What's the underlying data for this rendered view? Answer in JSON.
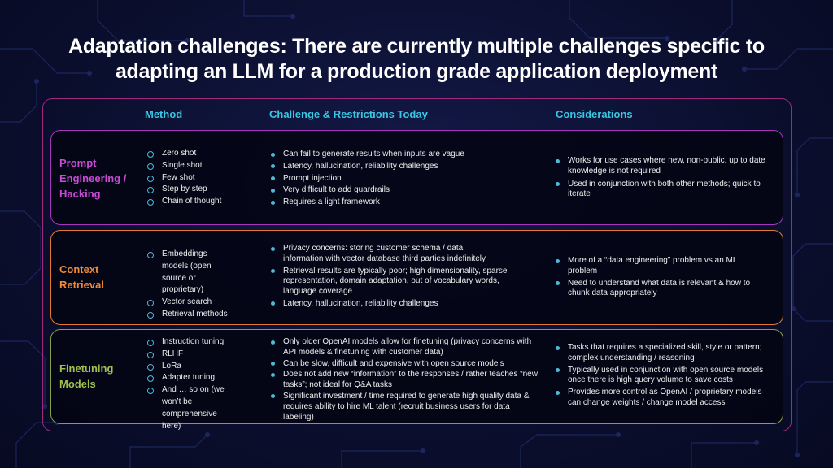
{
  "slide": {
    "title_line1": "Adaptation challenges: There are currently multiple challenges specific to",
    "title_line2": "adapting an LLM for a production grade application deployment"
  },
  "columns": {
    "method": "Method",
    "challenge": "Challenge & Restrictions Today",
    "considerations": "Considerations"
  },
  "rows": [
    {
      "name_lines": [
        "Prompt",
        "Engineering /",
        "Hacking"
      ],
      "methods": [
        "Zero shot",
        "Single shot",
        "Few shot",
        "Step by step",
        "Chain of thought"
      ],
      "challenges": [
        "Can fail to generate results when inputs are vague",
        "Latency, hallucination, reliability challenges",
        "Prompt injection",
        "Very difficult to add guardrails",
        "Requires a light framework"
      ],
      "considerations": [
        "Works for use cases where new, non-public, up to date knowledge is not required",
        "Used in conjunction with both other methods; quick to iterate"
      ]
    },
    {
      "name_lines": [
        "Context",
        "Retrieval"
      ],
      "methods": [
        "Embeddings models (open source or proprietary)",
        "Vector search",
        "Retrieval methods"
      ],
      "challenges": [
        "Privacy concerns: storing customer schema / data information with vector database third parties indefinitely",
        "Retrieval results are typically poor; high dimensionality, sparse representation, domain adaptation, out of vocabulary words, language coverage",
        "Latency, hallucination, reliability challenges"
      ],
      "considerations": [
        "More of a “data engineering” problem vs an ML problem",
        "Need to understand what data is relevant & how to chunk data appropriately"
      ]
    },
    {
      "name_lines": [
        "Finetuning",
        "Models"
      ],
      "methods": [
        "Instruction tuning",
        "RLHF",
        "LoRa",
        "Adapter tuning",
        "And … so on (we won’t be comprehensive here)"
      ],
      "challenges": [
        "Only older OpenAI models allow for finetuning (privacy concerns with API models & finetuning with customer data)",
        "Can be slow, difficult and expensive with open source models",
        "Does not add new “information” to the responses / rather teaches “new tasks”; not ideal for Q&A tasks",
        "Significant investment / time required to generate high quality data & requires ability to hire ML talent (recruit business users for data labeling)"
      ],
      "considerations": [
        "Tasks that requires a specialized skill, style or pattern; complex understanding / reasoning",
        "Typically used in conjunction with open source models once there is high query volume to save costs",
        "Provides more control as OpenAI / proprietary models can change weights / change model access"
      ]
    }
  ],
  "colors": {
    "background": "#0b0f2e",
    "header_text": "#38c6e2",
    "bullet": "#4fb9d8",
    "prompt_row": "#c94ad6",
    "context_row": "#f08a3a",
    "finetuning_row": "#a0c050",
    "outer_border": "#a0297e"
  }
}
